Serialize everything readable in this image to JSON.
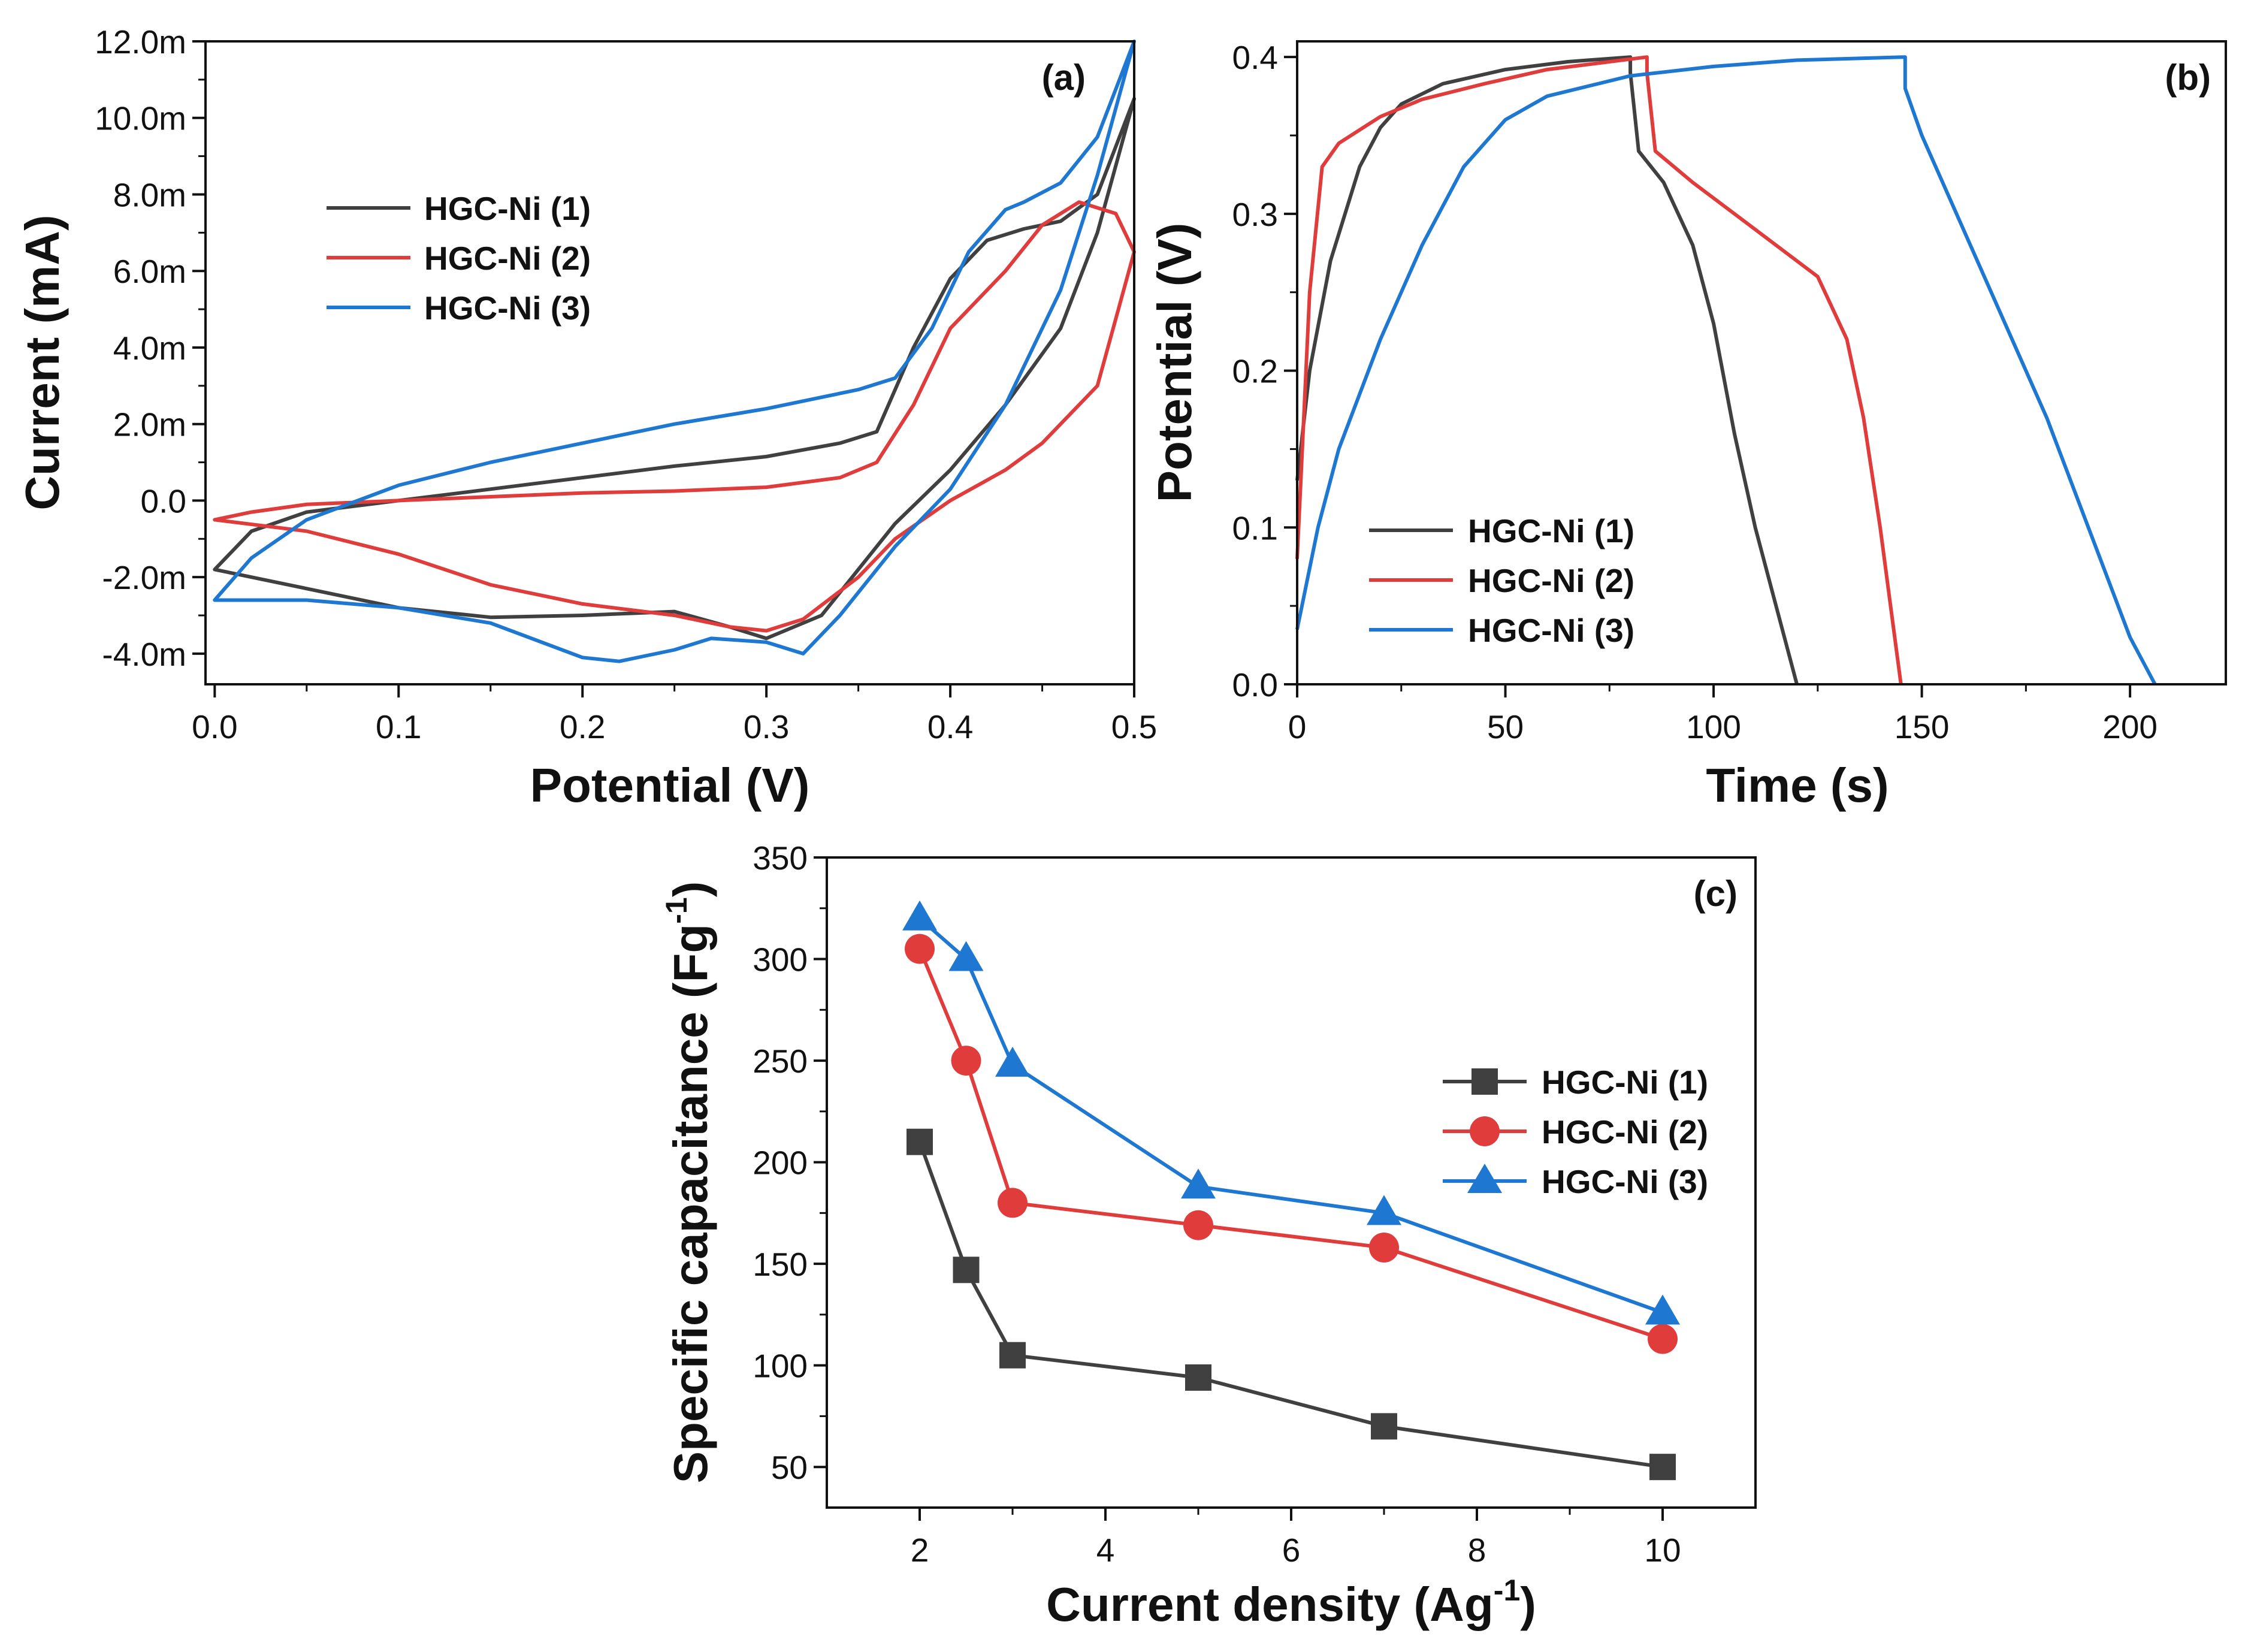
{
  "chart_data": [
    {
      "id": "a",
      "type": "line",
      "panel_label": "(a)",
      "xlabel": "Potential (V)",
      "ylabel": "Current (mA)",
      "xlim": [
        -0.005,
        0.5
      ],
      "ylim": [
        -4.8,
        12.0
      ],
      "xticks": [
        0.0,
        0.1,
        0.2,
        0.3,
        0.4,
        0.5
      ],
      "xtick_labels": [
        "0.0",
        "0.1",
        "0.2",
        "0.3",
        "0.4",
        "0.5"
      ],
      "yticks": [
        -4,
        -2,
        0,
        2,
        4,
        6,
        8,
        10,
        12
      ],
      "ytick_labels": [
        "-4.0m",
        "-2.0m",
        "0.0",
        "2.0m",
        "4.0m",
        "6.0m",
        "8.0m",
        "10.0m",
        "12.0m"
      ],
      "legend_position": "top-left",
      "series": [
        {
          "name": "HGC-Ni (1)",
          "color": "#404040",
          "closed": true,
          "points": [
            [
              0.0,
              -1.8
            ],
            [
              0.02,
              -2.0
            ],
            [
              0.05,
              -2.3
            ],
            [
              0.1,
              -2.8
            ],
            [
              0.15,
              -3.05
            ],
            [
              0.2,
              -3.0
            ],
            [
              0.25,
              -2.9
            ],
            [
              0.28,
              -3.3
            ],
            [
              0.3,
              -3.6
            ],
            [
              0.33,
              -3.0
            ],
            [
              0.35,
              -1.8
            ],
            [
              0.37,
              -0.6
            ],
            [
              0.4,
              0.8
            ],
            [
              0.43,
              2.5
            ],
            [
              0.46,
              4.5
            ],
            [
              0.48,
              7.0
            ],
            [
              0.5,
              10.5
            ],
            [
              0.48,
              8.0
            ],
            [
              0.46,
              7.3
            ],
            [
              0.44,
              7.1
            ],
            [
              0.42,
              6.8
            ],
            [
              0.4,
              5.8
            ],
            [
              0.38,
              4.0
            ],
            [
              0.36,
              1.8
            ],
            [
              0.34,
              1.5
            ],
            [
              0.3,
              1.15
            ],
            [
              0.25,
              0.9
            ],
            [
              0.2,
              0.6
            ],
            [
              0.15,
              0.3
            ],
            [
              0.1,
              0.0
            ],
            [
              0.05,
              -0.3
            ],
            [
              0.02,
              -0.8
            ],
            [
              0.0,
              -1.8
            ]
          ]
        },
        {
          "name": "HGC-Ni (2)",
          "color": "#e03c3c",
          "closed": true,
          "points": [
            [
              0.0,
              -0.5
            ],
            [
              0.05,
              -0.8
            ],
            [
              0.1,
              -1.4
            ],
            [
              0.15,
              -2.2
            ],
            [
              0.2,
              -2.7
            ],
            [
              0.25,
              -3.0
            ],
            [
              0.28,
              -3.3
            ],
            [
              0.3,
              -3.4
            ],
            [
              0.32,
              -3.1
            ],
            [
              0.35,
              -2.0
            ],
            [
              0.37,
              -1.0
            ],
            [
              0.4,
              0.0
            ],
            [
              0.43,
              0.8
            ],
            [
              0.45,
              1.5
            ],
            [
              0.48,
              3.0
            ],
            [
              0.5,
              6.5
            ],
            [
              0.49,
              7.5
            ],
            [
              0.47,
              7.8
            ],
            [
              0.45,
              7.2
            ],
            [
              0.43,
              6.0
            ],
            [
              0.4,
              4.5
            ],
            [
              0.38,
              2.5
            ],
            [
              0.36,
              1.0
            ],
            [
              0.34,
              0.6
            ],
            [
              0.3,
              0.35
            ],
            [
              0.25,
              0.25
            ],
            [
              0.2,
              0.2
            ],
            [
              0.15,
              0.1
            ],
            [
              0.1,
              0.0
            ],
            [
              0.05,
              -0.1
            ],
            [
              0.02,
              -0.3
            ],
            [
              0.0,
              -0.5
            ]
          ]
        },
        {
          "name": "HGC-Ni (3)",
          "color": "#1e78d2",
          "closed": true,
          "points": [
            [
              0.0,
              -2.6
            ],
            [
              0.05,
              -2.6
            ],
            [
              0.1,
              -2.8
            ],
            [
              0.15,
              -3.2
            ],
            [
              0.2,
              -4.1
            ],
            [
              0.22,
              -4.2
            ],
            [
              0.25,
              -3.9
            ],
            [
              0.27,
              -3.6
            ],
            [
              0.3,
              -3.7
            ],
            [
              0.32,
              -4.0
            ],
            [
              0.34,
              -3.0
            ],
            [
              0.37,
              -1.2
            ],
            [
              0.4,
              0.3
            ],
            [
              0.43,
              2.5
            ],
            [
              0.46,
              5.5
            ],
            [
              0.48,
              8.5
            ],
            [
              0.5,
              12.0
            ],
            [
              0.48,
              9.5
            ],
            [
              0.46,
              8.3
            ],
            [
              0.44,
              7.8
            ],
            [
              0.43,
              7.6
            ],
            [
              0.41,
              6.5
            ],
            [
              0.39,
              4.5
            ],
            [
              0.37,
              3.2
            ],
            [
              0.35,
              2.9
            ],
            [
              0.3,
              2.4
            ],
            [
              0.25,
              2.0
            ],
            [
              0.2,
              1.5
            ],
            [
              0.15,
              1.0
            ],
            [
              0.1,
              0.4
            ],
            [
              0.05,
              -0.5
            ],
            [
              0.02,
              -1.5
            ],
            [
              0.0,
              -2.6
            ]
          ]
        }
      ]
    },
    {
      "id": "b",
      "type": "line",
      "panel_label": "(b)",
      "xlabel": "Time (s)",
      "ylabel": "Potential (V)",
      "xlim": [
        0,
        223
      ],
      "ylim": [
        0.0,
        0.41
      ],
      "xticks": [
        0,
        50,
        100,
        150,
        200
      ],
      "xtick_labels": [
        "0",
        "50",
        "100",
        "150",
        "200"
      ],
      "yticks": [
        0.0,
        0.1,
        0.2,
        0.3,
        0.4
      ],
      "ytick_labels": [
        "0.0",
        "0.1",
        "0.2",
        "0.3",
        "0.4"
      ],
      "legend_position": "bottom-left",
      "series": [
        {
          "name": "HGC-Ni (1)",
          "color": "#404040",
          "points": [
            [
              0,
              0.13
            ],
            [
              3,
              0.2
            ],
            [
              8,
              0.27
            ],
            [
              15,
              0.33
            ],
            [
              20,
              0.355
            ],
            [
              25,
              0.37
            ],
            [
              35,
              0.383
            ],
            [
              50,
              0.392
            ],
            [
              65,
              0.397
            ],
            [
              80,
              0.4
            ],
            [
              80,
              0.39
            ],
            [
              82,
              0.34
            ],
            [
              88,
              0.32
            ],
            [
              95,
              0.28
            ],
            [
              100,
              0.23
            ],
            [
              105,
              0.16
            ],
            [
              110,
              0.1
            ],
            [
              115,
              0.05
            ],
            [
              120,
              0.0
            ]
          ]
        },
        {
          "name": "HGC-Ni (2)",
          "color": "#e03c3c",
          "points": [
            [
              0,
              0.08
            ],
            [
              3,
              0.25
            ],
            [
              6,
              0.33
            ],
            [
              10,
              0.345
            ],
            [
              20,
              0.362
            ],
            [
              30,
              0.373
            ],
            [
              45,
              0.383
            ],
            [
              60,
              0.392
            ],
            [
              75,
              0.397
            ],
            [
              84,
              0.4
            ],
            [
              84,
              0.39
            ],
            [
              86,
              0.34
            ],
            [
              95,
              0.32
            ],
            [
              110,
              0.29
            ],
            [
              125,
              0.26
            ],
            [
              132,
              0.22
            ],
            [
              136,
              0.17
            ],
            [
              140,
              0.1
            ],
            [
              143,
              0.04
            ],
            [
              145,
              0.0
            ]
          ]
        },
        {
          "name": "HGC-Ni (3)",
          "color": "#1e78d2",
          "points": [
            [
              0,
              0.035
            ],
            [
              5,
              0.1
            ],
            [
              10,
              0.15
            ],
            [
              20,
              0.22
            ],
            [
              30,
              0.28
            ],
            [
              40,
              0.33
            ],
            [
              50,
              0.36
            ],
            [
              60,
              0.375
            ],
            [
              80,
              0.388
            ],
            [
              100,
              0.394
            ],
            [
              120,
              0.398
            ],
            [
              146,
              0.4
            ],
            [
              146,
              0.38
            ],
            [
              150,
              0.35
            ],
            [
              160,
              0.29
            ],
            [
              170,
              0.23
            ],
            [
              180,
              0.17
            ],
            [
              190,
              0.1
            ],
            [
              200,
              0.03
            ],
            [
              206,
              0.0
            ]
          ]
        }
      ]
    },
    {
      "id": "c",
      "type": "line",
      "panel_label": "(c)",
      "xlabel_main": "Current density (Ag",
      "xlabel_sup": "-1",
      "xlabel_end": ")",
      "ylabel_main": "Specific capacitance (Fg",
      "ylabel_sup": "-1",
      "ylabel_end": ")",
      "xlim": [
        1,
        11
      ],
      "ylim": [
        30,
        350
      ],
      "xticks": [
        2,
        4,
        6,
        8,
        10
      ],
      "xtick_labels": [
        "2",
        "4",
        "6",
        "8",
        "10"
      ],
      "yticks": [
        50,
        100,
        150,
        200,
        250,
        300,
        350
      ],
      "ytick_labels": [
        "50",
        "100",
        "150",
        "200",
        "250",
        "300",
        "350"
      ],
      "legend_position": "right",
      "x": [
        2,
        2.5,
        3,
        5,
        7,
        10
      ],
      "series": [
        {
          "name": "HGC-Ni (1)",
          "color": "#404040",
          "marker": "square",
          "values": [
            210,
            147,
            105,
            94,
            70,
            50
          ]
        },
        {
          "name": "HGC-Ni (2)",
          "color": "#e03c3c",
          "marker": "circle",
          "values": [
            305,
            250,
            180,
            169,
            158,
            113
          ]
        },
        {
          "name": "HGC-Ni (3)",
          "color": "#1e78d2",
          "marker": "triangle",
          "values": [
            320,
            300,
            248,
            188,
            175,
            126
          ]
        }
      ]
    }
  ]
}
